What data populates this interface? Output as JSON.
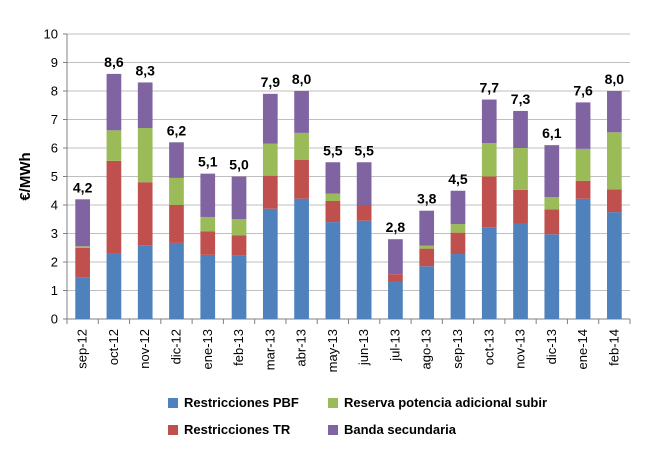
{
  "chart_data": {
    "type": "bar",
    "stacked": true,
    "ylabel": "€/MWh",
    "ylim": [
      0,
      10
    ],
    "yticks": [
      0,
      1,
      2,
      3,
      4,
      5,
      6,
      7,
      8,
      9,
      10
    ],
    "grid": true,
    "legend_position": "bottom",
    "categories": [
      "sep-12",
      "oct-12",
      "nov-12",
      "dic-12",
      "ene-13",
      "feb-13",
      "mar-13",
      "abr-13",
      "may-13",
      "jun-13",
      "jul-13",
      "ago-13",
      "sep-13",
      "oct-13",
      "nov-13",
      "dic-13",
      "ene-14",
      "feb-14"
    ],
    "totals_labels": [
      "4,2",
      "8,6",
      "8,3",
      "6,2",
      "5,1",
      "5,0",
      "7,9",
      "8,0",
      "5,5",
      "5,5",
      "2,8",
      "3,8",
      "4,5",
      "7,7",
      "7,3",
      "6,1",
      "7,6",
      "8,0"
    ],
    "totals": [
      4.2,
      8.6,
      8.3,
      6.2,
      5.1,
      5.0,
      7.9,
      8.0,
      5.5,
      5.5,
      2.8,
      3.8,
      4.5,
      7.7,
      7.3,
      6.1,
      7.6,
      8.0
    ],
    "series": [
      {
        "name": "Restricciones PBF",
        "color": "#4F81BD",
        "values": [
          1.45,
          2.3,
          2.57,
          2.67,
          2.25,
          2.22,
          3.87,
          4.22,
          3.4,
          3.45,
          1.3,
          1.85,
          2.28,
          3.22,
          3.35,
          2.97,
          4.22,
          3.75
        ]
      },
      {
        "name": "Restricciones TR",
        "color": "#C0504D",
        "values": [
          1.05,
          3.25,
          2.23,
          1.33,
          0.83,
          0.72,
          1.16,
          1.36,
          0.74,
          0.55,
          0.27,
          0.62,
          0.75,
          1.78,
          1.18,
          0.88,
          0.63,
          0.8
        ]
      },
      {
        "name": "Reserva potencia adicional subir",
        "color": "#9BBB59",
        "values": [
          0.05,
          1.07,
          1.9,
          0.95,
          0.5,
          0.56,
          1.12,
          0.95,
          0.26,
          0.0,
          0.0,
          0.1,
          0.3,
          1.17,
          1.47,
          0.43,
          1.12,
          2.0
        ]
      },
      {
        "name": "Banda secundaria",
        "color": "#8064A2",
        "values": [
          1.65,
          1.98,
          1.6,
          1.25,
          1.52,
          1.5,
          1.75,
          1.47,
          1.1,
          1.5,
          1.23,
          1.23,
          1.17,
          1.53,
          1.3,
          1.82,
          1.63,
          1.45
        ]
      }
    ]
  }
}
